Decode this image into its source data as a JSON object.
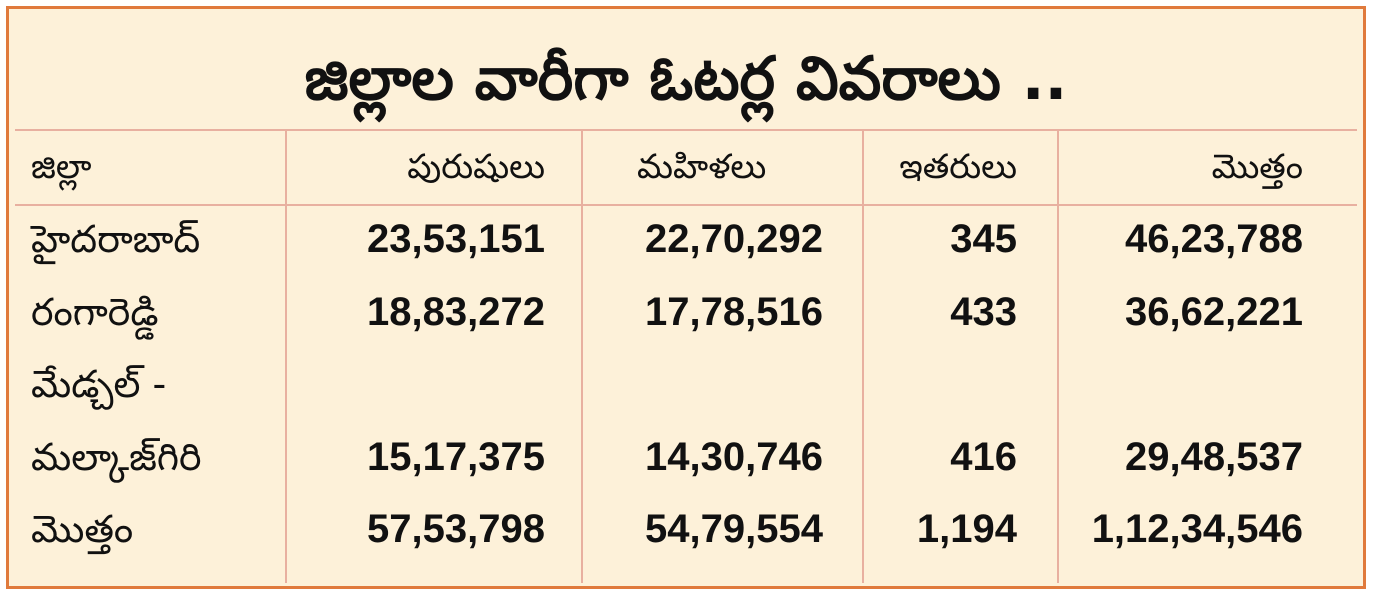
{
  "title": "జిల్లాల వారీగా ఓటర్ల వివరాలు ..",
  "columns": [
    "జిల్లా",
    "పురుషులు",
    "మహిళలు",
    "ఇతరులు",
    "మొత్తం"
  ],
  "rows": [
    {
      "district": "హైదరాబాద్",
      "men": "23,53,151",
      "women": "22,70,292",
      "others": "345",
      "total": "46,23,788"
    },
    {
      "district": "రంగారెడ్డి",
      "men": "18,83,272",
      "women": "17,78,516",
      "others": "433",
      "total": "36,62,221"
    },
    {
      "district": "మేడ్చల్ -",
      "district2": "మల్కాజ్‌గిరి",
      "men": "15,17,375",
      "women": "14,30,746",
      "others": "416",
      "total": "29,48,537"
    },
    {
      "district": "మొత్తం",
      "men": "57,53,798",
      "women": "54,79,554",
      "others": "1,194",
      "total": "1,12,34,546"
    }
  ],
  "colors": {
    "background": "#fdf1d9",
    "border": "#e07a3c",
    "rules": "#e8b0a0"
  }
}
